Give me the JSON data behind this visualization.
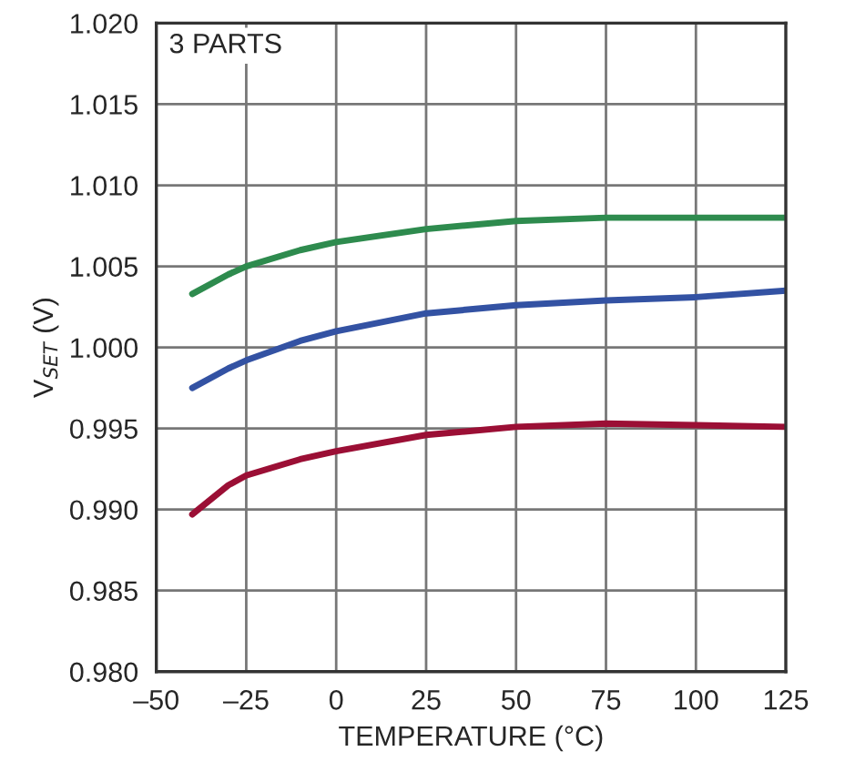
{
  "chart_data": {
    "type": "line",
    "xlabel": "TEMPERATURE (°C)",
    "ylabel": "V$_{SET}$ (V)",
    "annotations": [
      "3 PARTS"
    ],
    "series": [
      {
        "color": "#2e8b4e",
        "x": [
          -40,
          -30,
          -25,
          -10,
          0,
          25,
          50,
          75,
          100,
          125
        ],
        "values": [
          1.0033,
          1.0045,
          1.005,
          1.006,
          1.0065,
          1.0073,
          1.0078,
          1.008,
          1.008,
          1.008
        ]
      },
      {
        "color": "#3352a3",
        "x": [
          -40,
          -30,
          -25,
          -10,
          0,
          25,
          50,
          75,
          100,
          125
        ],
        "values": [
          0.9975,
          0.9987,
          0.9992,
          1.0004,
          1.001,
          1.0021,
          1.0026,
          1.0029,
          1.0031,
          1.0035
        ]
      },
      {
        "color": "#9b0f35",
        "x": [
          -40,
          -30,
          -25,
          -10,
          0,
          25,
          50,
          75,
          100,
          125
        ],
        "values": [
          0.9897,
          0.9915,
          0.9921,
          0.9931,
          0.9936,
          0.9946,
          0.9951,
          0.9953,
          0.9952,
          0.9951
        ]
      }
    ],
    "xlim": [
      -50,
      125
    ],
    "xticks": [
      {
        "value": -50,
        "label": "–50"
      },
      {
        "value": -25,
        "label": "–25"
      },
      0,
      25,
      50,
      75,
      100,
      125
    ],
    "ylim": [
      0.98,
      1.02
    ],
    "yticks": [
      {
        "value": 0.98,
        "label": "0.980"
      },
      {
        "value": 0.985,
        "label": "0.985"
      },
      {
        "value": 0.99,
        "label": "0.990"
      },
      {
        "value": 0.995,
        "label": "0.995"
      },
      {
        "value": 1.0,
        "label": "1.000"
      },
      {
        "value": 1.005,
        "label": "1.005"
      },
      {
        "value": 1.01,
        "label": "1.010"
      },
      {
        "value": 1.015,
        "label": "1.015"
      },
      {
        "value": 1.02,
        "label": "1.020"
      }
    ],
    "grid": true,
    "line_style": "solid",
    "marker": "none"
  }
}
